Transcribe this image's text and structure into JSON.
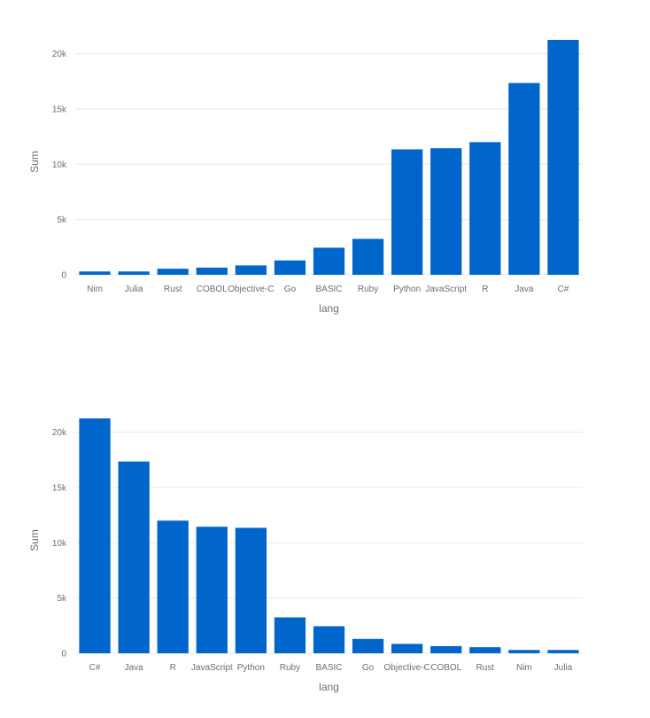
{
  "chart_data": [
    {
      "type": "bar",
      "sort": "ascending",
      "categories": [
        "Nim",
        "Julia",
        "Rust",
        "COBOL",
        "Objective-C",
        "Go",
        "BASIC",
        "Ruby",
        "Python",
        "JavaScript",
        "R",
        "Java",
        "C#"
      ],
      "values": [
        300,
        300,
        550,
        650,
        850,
        1300,
        2450,
        3250,
        11350,
        11450,
        12000,
        17350,
        21250
      ],
      "xlabel": "lang",
      "ylabel": "Sum",
      "ylim": [
        0,
        21250
      ],
      "yticks": [
        0,
        5000,
        10000,
        15000,
        20000
      ],
      "ytick_labels": [
        "0",
        "5k",
        "10k",
        "15k",
        "20k"
      ],
      "grid": true,
      "bar_color": "#0066cc"
    },
    {
      "type": "bar",
      "sort": "descending",
      "categories": [
        "C#",
        "Java",
        "R",
        "JavaScript",
        "Python",
        "Ruby",
        "BASIC",
        "Go",
        "Objective-C",
        "COBOL",
        "Rust",
        "Nim",
        "Julia"
      ],
      "values": [
        21250,
        17350,
        12000,
        11450,
        11350,
        3250,
        2450,
        1300,
        850,
        650,
        550,
        300,
        300
      ],
      "xlabel": "lang",
      "ylabel": "Sum",
      "ylim": [
        0,
        21250
      ],
      "yticks": [
        0,
        5000,
        10000,
        15000,
        20000
      ],
      "ytick_labels": [
        "0",
        "5k",
        "10k",
        "15k",
        "20k"
      ],
      "grid": true,
      "bar_color": "#0066cc"
    }
  ]
}
